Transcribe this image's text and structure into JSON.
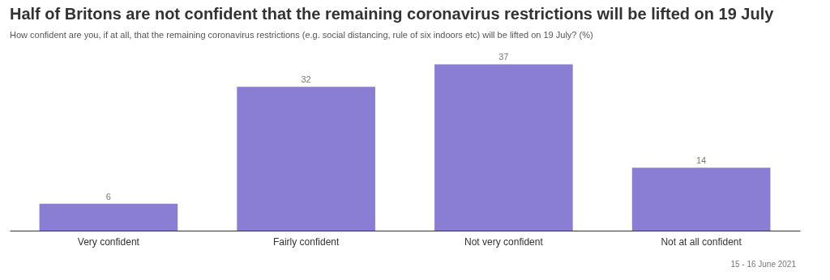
{
  "chart_data": {
    "type": "bar",
    "title": "Half of Britons are not confident that the remaining coronavirus restrictions will be lifted on 19 July",
    "subtitle": "How confident are you, if at all, that the remaining coronavirus restrictions (e.g. social distancing, rule of six indoors etc) will be lifted on 19 July? (%)",
    "categories": [
      "Very confident",
      "Fairly confident",
      "Not very confident",
      "Not at all confident"
    ],
    "values": [
      6,
      32,
      37,
      14
    ],
    "color": "#8a7dd4",
    "data_labels": true,
    "grid": false,
    "annotations": [
      "15 - 16 June 2021"
    ]
  }
}
